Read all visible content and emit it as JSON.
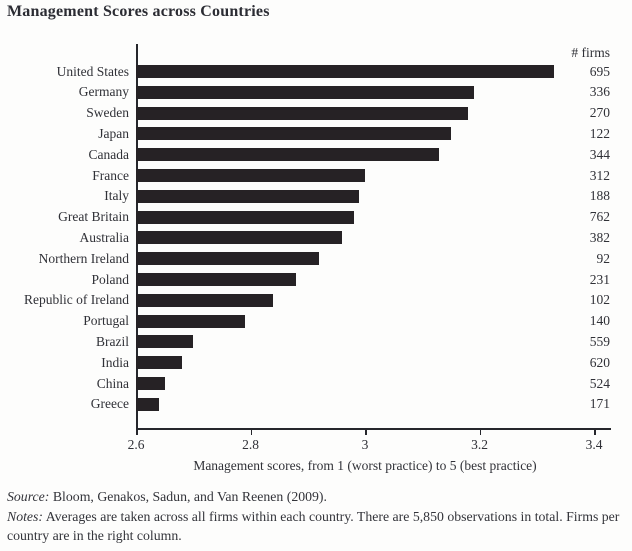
{
  "title": "Management Scores across Countries",
  "firms_header": "# firms",
  "chart_data": {
    "type": "bar",
    "orientation": "horizontal",
    "title": "Management Scores across Countries",
    "categories": [
      "United States",
      "Germany",
      "Sweden",
      "Japan",
      "Canada",
      "France",
      "Italy",
      "Great Britain",
      "Australia",
      "Northern Ireland",
      "Poland",
      "Republic of Ireland",
      "Portugal",
      "Brazil",
      "India",
      "China",
      "Greece"
    ],
    "values": [
      3.33,
      3.19,
      3.18,
      3.15,
      3.13,
      3.0,
      2.99,
      2.98,
      2.96,
      2.92,
      2.88,
      2.84,
      2.79,
      2.7,
      2.68,
      2.65,
      2.64
    ],
    "firms": [
      695,
      336,
      270,
      122,
      344,
      312,
      188,
      762,
      382,
      92,
      231,
      102,
      140,
      559,
      620,
      524,
      171
    ],
    "firms_column_header": "# firms",
    "xlabel": "Management scores, from 1 (worst practice) to 5 (best practice)",
    "xlim": [
      2.6,
      3.4
    ],
    "xticks": [
      "2.6",
      "2.8",
      "3",
      "3.2",
      "3.4"
    ],
    "xtick_values": [
      2.6,
      2.8,
      3.0,
      3.2,
      3.4
    ],
    "bar_color": "#262225",
    "grid": false,
    "legend": false
  },
  "footer": {
    "source_label": "Source:",
    "source_text": " Bloom, Genakos, Sadun, and Van Reenen (2009).",
    "notes_label": "Notes:",
    "notes_text": " Averages are taken across all firms within each country. There are 5,850 observations in total. Firms per country are in the right column."
  }
}
